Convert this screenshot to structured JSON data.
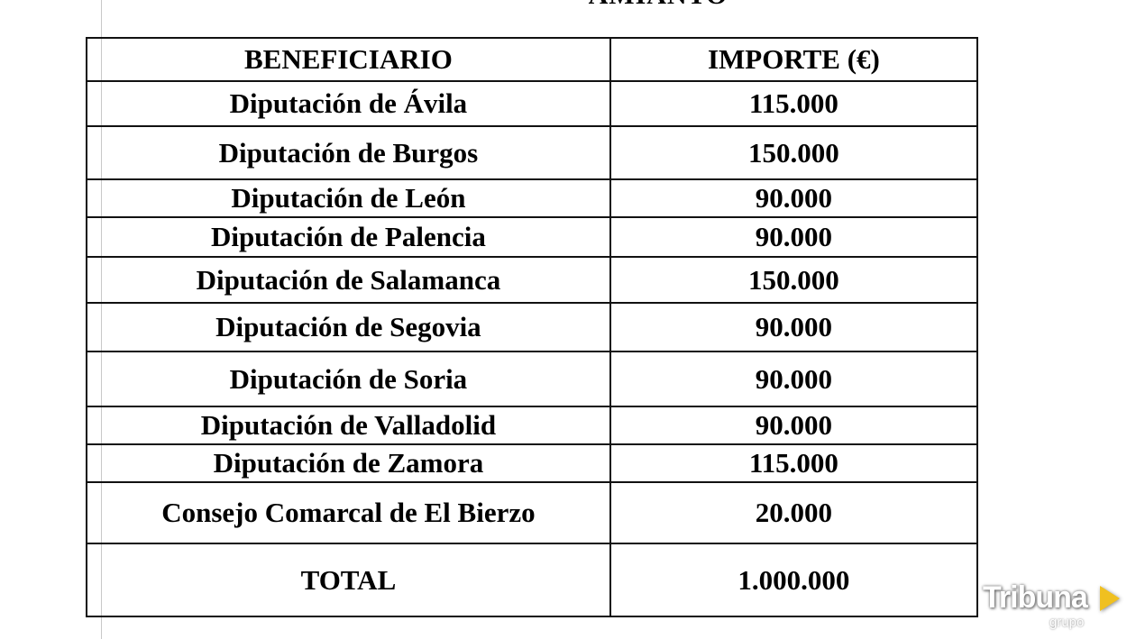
{
  "document": {
    "title": "AMIANTO",
    "table": {
      "headers": [
        "BENEFICIARIO",
        "IMPORTE (€)"
      ],
      "rows": [
        [
          "Diputación de Ávila",
          "115.000"
        ],
        [
          "Diputación de Burgos",
          "150.000"
        ],
        [
          "Diputación de León",
          "90.000"
        ],
        [
          "Diputación de Palencia",
          "90.000"
        ],
        [
          "Diputación de Salamanca",
          "150.000"
        ],
        [
          "Diputación de Segovia",
          "90.000"
        ],
        [
          "Diputación de Soria",
          "90.000"
        ],
        [
          "Diputación de Valladolid",
          "90.000"
        ],
        [
          "Diputación de Zamora",
          "115.000"
        ],
        [
          "Consejo Comarcal de El Bierzo",
          "20.000"
        ]
      ],
      "total": [
        "TOTAL",
        "1.000.000"
      ]
    }
  },
  "watermark": {
    "brand": "Tribuna",
    "sub": "grupo",
    "accent_color": "#f0c020"
  }
}
